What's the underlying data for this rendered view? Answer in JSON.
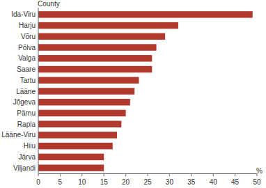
{
  "chart_data": {
    "type": "bar",
    "orientation": "horizontal",
    "y_label": "County",
    "x_label": "%",
    "categories": [
      "Ida-Viru",
      "Harju",
      "Võru",
      "Põlva",
      "Valga",
      "Saare",
      "Tartu",
      "Lääne",
      "Jõgeva",
      "Pärnu",
      "Rapla",
      "Lääne-Viru",
      "Hiiu",
      "Järva",
      "Viljandi"
    ],
    "values": [
      49,
      32,
      29,
      27,
      26,
      26,
      23,
      22,
      21,
      20,
      19,
      18,
      17,
      15,
      15
    ],
    "color": "#b0382c",
    "xlim": [
      0,
      50
    ],
    "xticks": [
      0,
      5,
      10,
      15,
      20,
      25,
      30,
      35,
      40,
      45,
      50
    ],
    "grid": false
  }
}
